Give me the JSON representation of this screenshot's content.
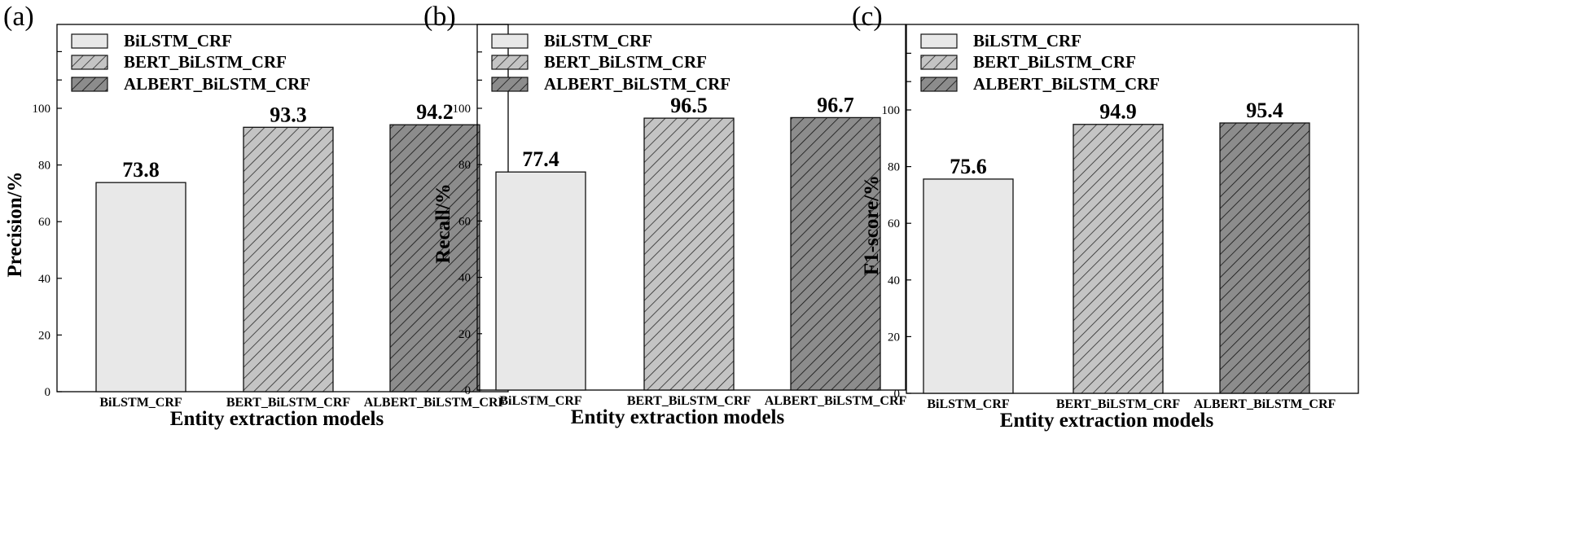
{
  "figure": {
    "xlabel": "Entity extraction models",
    "legend_position": "top-left",
    "series_styles": [
      {
        "name": "BiLSTM_CRF",
        "fill": "#e8e8e8",
        "hatch": "none",
        "hatch_color": "#000000"
      },
      {
        "name": "BERT_BiLSTM_CRF",
        "fill": "#c4c4c4",
        "hatch": "diagonal",
        "hatch_color": "#2a2a2a"
      },
      {
        "name": "ALBERT_BiLSTM_CRF",
        "fill": "#8c8c8c",
        "hatch": "diagonal",
        "hatch_color": "#111111"
      }
    ]
  },
  "chart_data": [
    {
      "type": "bar",
      "panel_label": "(a)",
      "title": "",
      "categories": [
        "BiLSTM_CRF",
        "BERT_BiLSTM_CRF",
        "ALBERT_BiLSTM_CRF"
      ],
      "values": [
        73.8,
        93.3,
        94.2
      ],
      "value_labels": [
        "73.8",
        "93.3",
        "94.2"
      ],
      "xlabel": "Entity extraction models",
      "ylabel": "Precision/%",
      "ylim": [
        0,
        130
      ],
      "yticks": [
        0,
        20,
        40,
        60,
        80,
        100
      ],
      "ytick_labels": [
        "0",
        "20",
        "40",
        "60",
        "80",
        "100"
      ],
      "legend": [
        "BiLSTM_CRF",
        "BERT_BiLSTM_CRF",
        "ALBERT_BiLSTM_CRF"
      ],
      "grid": false
    },
    {
      "type": "bar",
      "panel_label": "(b)",
      "title": "",
      "categories": [
        "BiLSTM_CRF",
        "BERT_BiLSTM_CRF",
        "ALBERT_BiLSTM_CRF"
      ],
      "values": [
        77.4,
        96.5,
        96.7
      ],
      "value_labels": [
        "77.4",
        "96.5",
        "96.7"
      ],
      "xlabel": "Entity extraction models",
      "ylabel": "Recall/%",
      "ylim": [
        0,
        130
      ],
      "yticks": [
        0,
        20,
        40,
        60,
        80,
        100
      ],
      "ytick_labels": [
        "0",
        "20",
        "40",
        "60",
        "80",
        "100"
      ],
      "legend": [
        "BiLSTM_CRF",
        "BERT_BiLSTM_CRF",
        "ALBERT_BiLSTM_CRF"
      ],
      "grid": false
    },
    {
      "type": "bar",
      "panel_label": "(c)",
      "title": "",
      "categories": [
        "BiLSTM_CRF",
        "BERT_BiLSTM_CRF",
        "ALBERT_BiLSTM_CRF"
      ],
      "values": [
        75.6,
        94.9,
        95.4
      ],
      "value_labels": [
        "75.6",
        "94.9",
        "95.4"
      ],
      "xlabel": "Entity extraction models",
      "ylabel": "F1-score/%",
      "ylim": [
        0,
        130
      ],
      "yticks": [
        0,
        20,
        40,
        60,
        80,
        100
      ],
      "ytick_labels": [
        "0",
        "20",
        "40",
        "60",
        "80",
        "100"
      ],
      "legend": [
        "BiLSTM_CRF",
        "BERT_BiLSTM_CRF",
        "ALBERT_BiLSTM_CRF"
      ],
      "grid": false
    }
  ]
}
